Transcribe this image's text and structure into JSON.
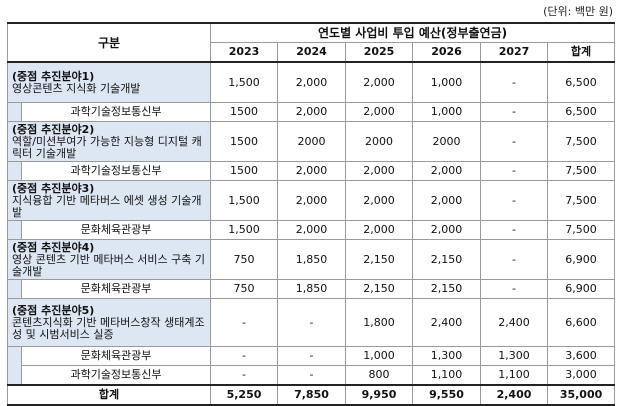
{
  "unit": "(단위: 백만 원)",
  "header": {
    "gubun": "구분",
    "group_title": "연도별 사업비 투입 예산(정부출연금)",
    "years": [
      "2023",
      "2024",
      "2025",
      "2026",
      "2027",
      "합계"
    ]
  },
  "rows": [
    {
      "kind": "cat",
      "title": "(중점 추진분야1)",
      "desc": "영상콘텐츠 지식화 기술개발",
      "values": [
        "1,500",
        "2,000",
        "2,000",
        "1,000",
        "-",
        "6,500"
      ]
    },
    {
      "kind": "ministry",
      "label": "과학기술정보통신부",
      "values": [
        "1500",
        "2,000",
        "2,000",
        "1,000",
        "-",
        "6,500"
      ]
    },
    {
      "kind": "cat",
      "title": "(중점 추진분야2)",
      "desc": "역할/미션부여가 가능한 지능형 디지털 캐릭터 기술개발",
      "values": [
        "1500",
        "2000",
        "2000",
        "2000",
        "-",
        "7,500"
      ]
    },
    {
      "kind": "ministry",
      "label": "과학기술정보통신부",
      "values": [
        "1500",
        "2,000",
        "2,000",
        "2,000",
        "-",
        "7,500"
      ]
    },
    {
      "kind": "cat",
      "title": "(중점 추진분야3)",
      "desc": "지식융합 기반 메타버스 에셋 생성 기술개발",
      "values": [
        "1,500",
        "2,000",
        "2,000",
        "2,000",
        "-",
        "7,500"
      ]
    },
    {
      "kind": "ministry",
      "label": "문화체육관광부",
      "values": [
        "1,500",
        "2,000",
        "2,000",
        "2,000",
        "-",
        "7,500"
      ]
    },
    {
      "kind": "cat",
      "title": "(중점 추진분야4)",
      "desc": "영상 콘텐츠 기반 메타버스 서비스 구축 기술개발",
      "values": [
        "750",
        "1,850",
        "2,150",
        "2,150",
        "-",
        "6,900"
      ]
    },
    {
      "kind": "ministry",
      "label": "문화체육관광부",
      "values": [
        "750",
        "1,850",
        "2,150",
        "2,150",
        "-",
        "6,900"
      ]
    },
    {
      "kind": "cat",
      "title": "(중점 추진분야5)",
      "desc": "콘텐츠지식화 기반 메타버스창작 생태계조성 및 시범서비스 실증",
      "values": [
        "-",
        "-",
        "1,800",
        "2,400",
        "2,400",
        "6,600"
      ]
    },
    {
      "kind": "ministry",
      "label": "문화체육관광부",
      "values": [
        "-",
        "-",
        "1,000",
        "1,300",
        "1,300",
        "3,600"
      ]
    },
    {
      "kind": "ministry",
      "label": "과학기술정보통신부",
      "values": [
        "-",
        "-",
        "800",
        "1,100",
        "1,100",
        "3,000"
      ]
    }
  ],
  "total": {
    "label": "합계",
    "values": [
      "5,250",
      "7,850",
      "9,950",
      "9,550",
      "2,400",
      "35,000"
    ]
  }
}
